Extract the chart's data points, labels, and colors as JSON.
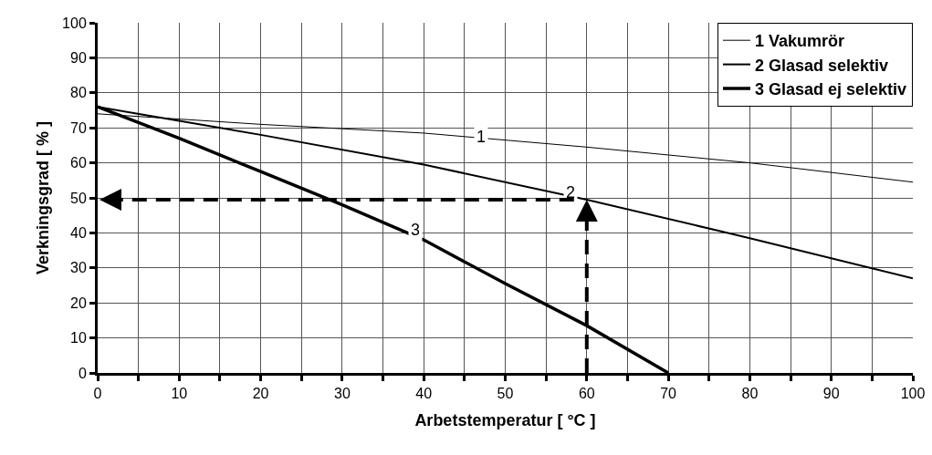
{
  "chart_data": {
    "type": "line",
    "xlabel": "Arbetstemperatur [ °C ]",
    "ylabel": "Verkningsgrad [ % ]",
    "series": [
      {
        "name": "1 Vakumrör",
        "color": "#000000",
        "x": [
          0,
          20,
          40,
          60,
          80,
          100
        ],
        "values": [
          74,
          71,
          68.5,
          64.5,
          60,
          54.5
        ]
      },
      {
        "name": "2 Glasad selektiv",
        "color": "#000000",
        "x": [
          0,
          20,
          40,
          60,
          80,
          100
        ],
        "values": [
          76,
          68,
          59.5,
          49.5,
          38.5,
          27
        ]
      },
      {
        "name": "3 Glasad ej selektiv",
        "color": "#000000",
        "x": [
          0,
          10,
          20,
          30,
          40,
          50,
          60,
          70
        ],
        "values": [
          76,
          67,
          57.5,
          48,
          38,
          25.5,
          13.5,
          0
        ]
      }
    ],
    "xlim": [
      0,
      100
    ],
    "ylim": [
      0,
      100
    ],
    "xticks": [
      0,
      {
        "value": 5,
        "label": null
      },
      10,
      {
        "value": 15,
        "label": null
      },
      20,
      {
        "value": 25,
        "label": null
      },
      30,
      {
        "value": 35,
        "label": null
      },
      40,
      {
        "value": 45,
        "label": null
      },
      50,
      {
        "value": 55,
        "label": null
      },
      60,
      {
        "value": 65,
        "label": null
      },
      70,
      {
        "value": 75,
        "label": null
      },
      80,
      {
        "value": 85,
        "label": null
      },
      90,
      {
        "value": 95,
        "label": null
      },
      100
    ],
    "yticks": [
      0,
      10,
      20,
      30,
      40,
      50,
      60,
      70,
      80,
      90,
      100
    ],
    "annotations": [
      {
        "text": "1",
        "x": 47,
        "y": 67.5
      },
      {
        "text": "2",
        "x": 58,
        "y": 51.5
      },
      {
        "text": "3",
        "x": 39,
        "y": 41
      }
    ],
    "grid": true,
    "legend": "top right",
    "marker": "none",
    "line_style": "solid"
  }
}
